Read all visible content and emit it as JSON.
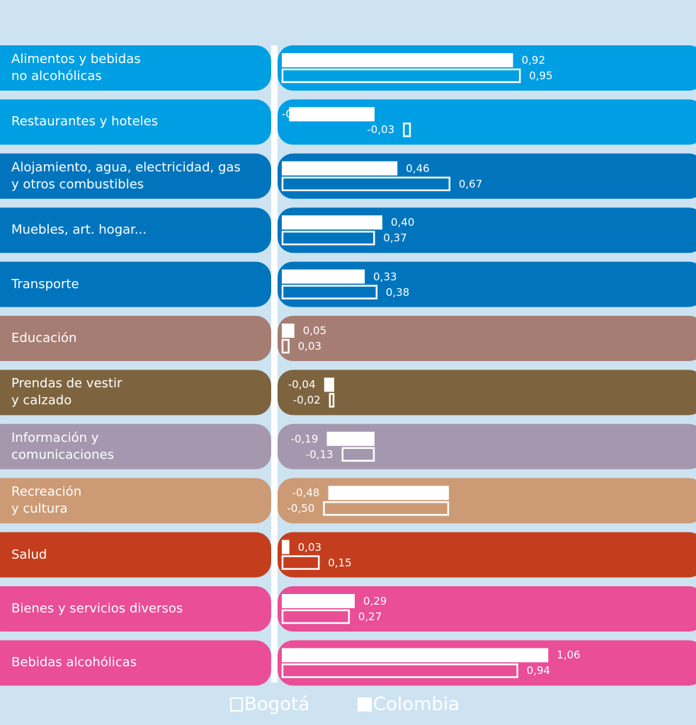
{
  "chart_data": {
    "type": "bar",
    "orientation": "horizontal",
    "categories": [
      "Alimentos y bebidas\nno alcohólicas",
      "Restaurantes y hoteles",
      "Alojamiento, agua, electricidad, gas\ny otros combustibles",
      "Muebles, art. hogar...",
      "Transporte",
      "Educación",
      "Prendas de vestir\ny calzado",
      "Información y\ncomunicaciones",
      "Recreación\ny cultura",
      "Salud",
      "Bienes y servicios diversos",
      "Bebidas alcohólicas"
    ],
    "series": [
      {
        "name": "Colombia",
        "style": "filled",
        "values": [
          0.92,
          -0.34,
          0.46,
          0.4,
          0.33,
          0.05,
          -0.04,
          -0.19,
          -0.48,
          0.03,
          0.29,
          1.06
        ],
        "labels": [
          "0,92",
          "-0,34",
          "0,46",
          "0,40",
          "0,33",
          "0,05",
          "-0,04",
          "-0,19",
          "-0,48",
          "0,03",
          "0,29",
          "1,06"
        ]
      },
      {
        "name": "Bogotá",
        "style": "outline",
        "values": [
          0.95,
          -0.03,
          0.67,
          0.37,
          0.38,
          0.03,
          -0.02,
          -0.13,
          -0.5,
          0.15,
          0.27,
          0.94
        ],
        "labels": [
          "0,95",
          "-0,03",
          "0,67",
          "0,37",
          "0,38",
          "0,03",
          "-0,02",
          "-0,13",
          "-0,50",
          "0,15",
          "0,27",
          "0,94"
        ]
      }
    ],
    "row_colors": [
      "#009fe3",
      "#009fe3",
      "#0075be",
      "#0075be",
      "#0075be",
      "#a67d73",
      "#7d643f",
      "#a598ae",
      "#cc9a74",
      "#c43e1e",
      "#e94e97",
      "#e94e97"
    ],
    "legend": [
      "Bogotá",
      "Colombia"
    ],
    "legend_position": "bottom-center",
    "grid": false
  },
  "colors": {
    "background": "#cde3f1",
    "bar": "#ffffff"
  }
}
